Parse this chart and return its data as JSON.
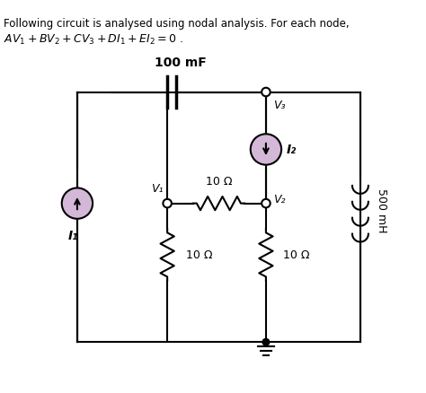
{
  "title_line1": "Following circuit is analysed using nodal analysis. For each node,",
  "title_line2": "AV₁+BV₂+CV₃+DI₁+EI₂=0 .",
  "bg_color": "#ffffff",
  "text_color": "#000000",
  "wire_color": "#000000",
  "component_color": "#000000",
  "current_source_color": "#d4b8d8",
  "node_color": "#ffffff",
  "resistor_color": "#8B4513",
  "cap_label": "100 mF",
  "res1_label": "10 Ω",
  "res2_label": "10 Ω",
  "res3_label": "10 Ω",
  "ind_label": "500 mH",
  "V1_label": "V₁",
  "V2_label": "V₂",
  "V3_label": "V₃",
  "I1_label": "I₁",
  "I2_label": "I₂"
}
